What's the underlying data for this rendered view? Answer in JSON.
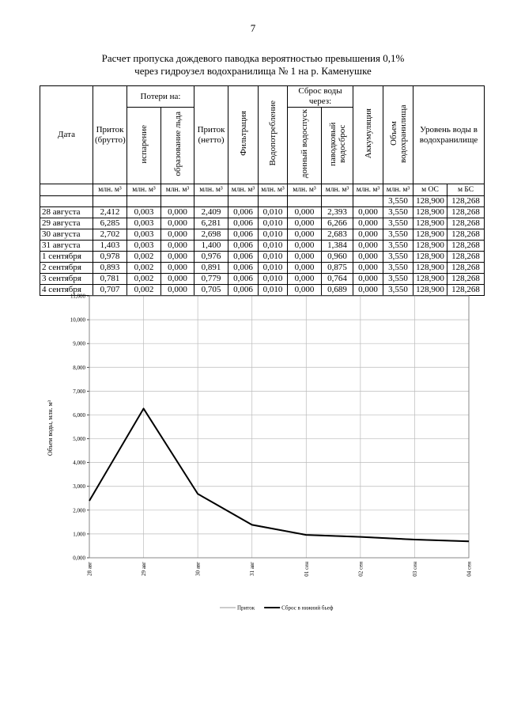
{
  "page_number": "7",
  "title": [
    "Расчет пропуска дождевого паводка вероятностью превышения 0,1%",
    "через гидроузел водохранилища № 1 на р. Каменушке"
  ],
  "table": {
    "header": {
      "date": "Дата",
      "inflow_gross": "Приток (брутто)",
      "losses": "Потери на:",
      "evaporation": "испарение",
      "ice": "образование льда",
      "inflow_net": "Приток (нетто)",
      "filtration": "Фильтрация",
      "consumption": "Водопотребление",
      "discharge": "Сброс воды через:",
      "bottom_outlet": "донный водоспуск",
      "spillway": "паводковый водосброс",
      "accumulation": "Аккумуляция",
      "volume": "Объем водохранилища",
      "level": "Уровень воды в водохранилище"
    },
    "units": [
      "млн. м³",
      "млн. м³",
      "млн. м³",
      "млн. м³",
      "млн. м³",
      "млн. м³",
      "млн. м³",
      "млн. м³",
      "млн. м³",
      "млн. м³",
      "м ОС",
      "м БС"
    ],
    "rows": [
      [
        null,
        null,
        null,
        null,
        null,
        null,
        null,
        null,
        null,
        null,
        "3,550",
        "128,900",
        "128,268"
      ],
      [
        "28 августа",
        "2,412",
        "0,003",
        "0,000",
        "2,409",
        "0,006",
        "0,010",
        "0,000",
        "2,393",
        "0,000",
        "3,550",
        "128,900",
        "128,268"
      ],
      [
        "29 августа",
        "6,285",
        "0,003",
        "0,000",
        "6,281",
        "0,006",
        "0,010",
        "0,000",
        "6,266",
        "0,000",
        "3,550",
        "128,900",
        "128,268"
      ],
      [
        "30 августа",
        "2,702",
        "0,003",
        "0,000",
        "2,698",
        "0,006",
        "0,010",
        "0,000",
        "2,683",
        "0,000",
        "3,550",
        "128,900",
        "128,268"
      ],
      [
        "31 августа",
        "1,403",
        "0,003",
        "0,000",
        "1,400",
        "0,006",
        "0,010",
        "0,000",
        "1,384",
        "0,000",
        "3,550",
        "128,900",
        "128,268"
      ],
      [
        "1 сентября",
        "0,978",
        "0,002",
        "0,000",
        "0,976",
        "0,006",
        "0,010",
        "0,000",
        "0,960",
        "0,000",
        "3,550",
        "128,900",
        "128,268"
      ],
      [
        "2 сентября",
        "0,893",
        "0,002",
        "0,000",
        "0,891",
        "0,006",
        "0,010",
        "0,000",
        "0,875",
        "0,000",
        "3,550",
        "128,900",
        "128,268"
      ],
      [
        "3 сентября",
        "0,781",
        "0,002",
        "0,000",
        "0,779",
        "0,006",
        "0,010",
        "0,000",
        "0,764",
        "0,000",
        "3,550",
        "128,900",
        "128,268"
      ],
      [
        "4 сентября",
        "0,707",
        "0,002",
        "0,000",
        "0,705",
        "0,006",
        "0,010",
        "0,000",
        "0,689",
        "0,000",
        "3,550",
        "128,900",
        "128,268"
      ]
    ]
  },
  "chart_data": {
    "type": "line",
    "y_label": "Объем воды, млн. м³",
    "categories": [
      "28 авг",
      "29 авг",
      "30 авг",
      "31 авг",
      "01 сен",
      "02 сен",
      "03 сен",
      "04 сен"
    ],
    "series": [
      {
        "name": "Приток",
        "color": "#9a9a9a",
        "values": [
          2.412,
          6.285,
          2.702,
          1.403,
          0.978,
          0.893,
          0.781,
          0.707
        ]
      },
      {
        "name": "Сброс в нижний бьеф",
        "color": "#000000",
        "values": [
          2.393,
          6.266,
          2.683,
          1.384,
          0.96,
          0.875,
          0.764,
          0.689
        ]
      }
    ],
    "ylim": [
      0,
      11
    ],
    "yticks": [
      {
        "value": 0,
        "label": "0,000"
      },
      {
        "value": 1,
        "label": "1,000"
      },
      {
        "value": 2,
        "label": "2,000"
      },
      {
        "value": 3,
        "label": "3,000"
      },
      {
        "value": 4,
        "label": "4,000"
      },
      {
        "value": 5,
        "label": "5,000"
      },
      {
        "value": 6,
        "label": "6,000"
      },
      {
        "value": 7,
        "label": "7,000"
      },
      {
        "value": 8,
        "label": "8,000"
      },
      {
        "value": 9,
        "label": "9,000"
      },
      {
        "value": 10,
        "label": "10,000"
      },
      {
        "value": 11,
        "label": "11,000"
      }
    ],
    "grid": true,
    "legend": "bottom"
  }
}
